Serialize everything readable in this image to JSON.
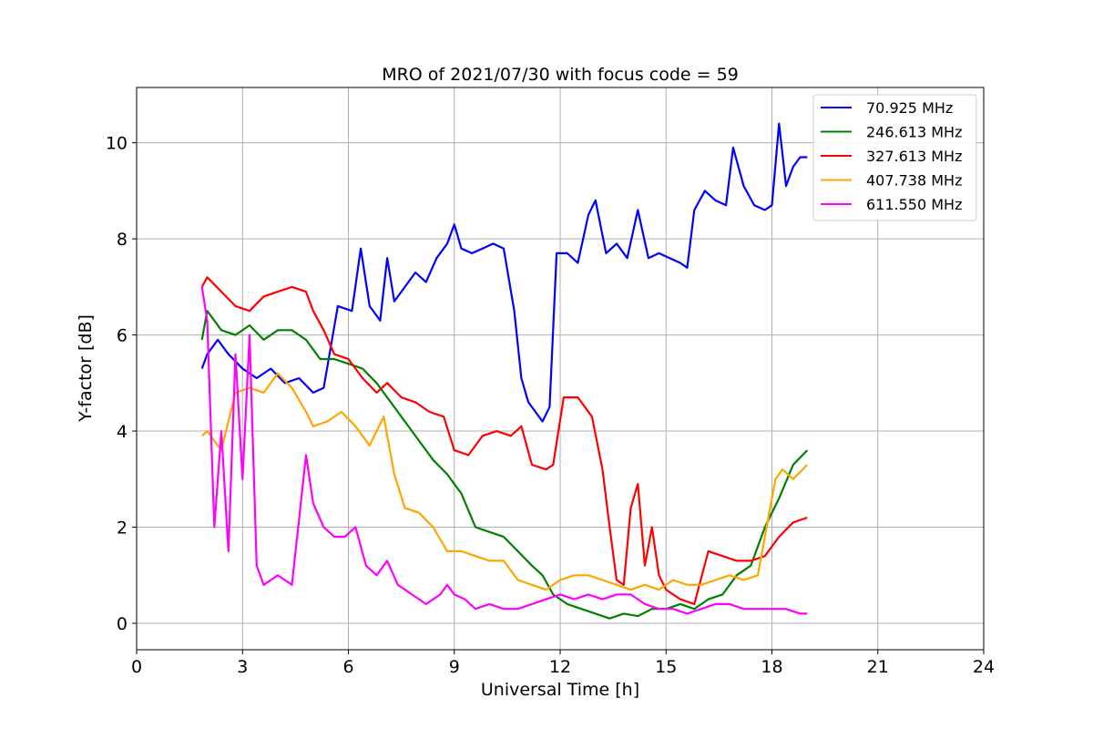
{
  "chart_data": {
    "type": "line",
    "title": "MRO of 2021/07/30 with focus code = 59",
    "xlabel": "Universal Time [h]",
    "ylabel": "Y-factor [dB]",
    "xlim": [
      0,
      24
    ],
    "ylim": [
      -0.55,
      11.15
    ],
    "xticks": [
      0,
      3,
      6,
      9,
      12,
      15,
      18,
      21,
      24
    ],
    "yticks": [
      0,
      2,
      4,
      6,
      8,
      10
    ],
    "grid": true,
    "legend_position": "top-right",
    "series": [
      {
        "name": "  70.925 MHz",
        "color": "#0000ff",
        "x": [
          1.85,
          2.0,
          2.3,
          2.6,
          3.0,
          3.4,
          3.8,
          4.2,
          4.6,
          5.0,
          5.3,
          5.7,
          6.1,
          6.35,
          6.6,
          6.9,
          7.1,
          7.3,
          7.6,
          7.9,
          8.2,
          8.5,
          8.8,
          9.0,
          9.2,
          9.5,
          9.8,
          10.1,
          10.4,
          10.7,
          10.9,
          11.1,
          11.3,
          11.5,
          11.7,
          11.9,
          12.2,
          12.5,
          12.8,
          13.0,
          13.3,
          13.6,
          13.9,
          14.2,
          14.5,
          14.8,
          15.1,
          15.4,
          15.6,
          15.8,
          16.1,
          16.4,
          16.7,
          16.9,
          17.2,
          17.5,
          17.8,
          18.0,
          18.2,
          18.4,
          18.6,
          18.8,
          19.0
        ],
        "values": [
          5.3,
          5.6,
          5.9,
          5.6,
          5.3,
          5.1,
          5.3,
          5.0,
          5.1,
          4.8,
          4.9,
          6.6,
          6.5,
          7.8,
          6.6,
          6.3,
          7.6,
          6.7,
          7.0,
          7.3,
          7.1,
          7.6,
          7.9,
          8.3,
          7.8,
          7.7,
          7.8,
          7.9,
          7.8,
          6.5,
          5.1,
          4.6,
          4.4,
          4.2,
          4.5,
          7.7,
          7.7,
          7.5,
          8.5,
          8.8,
          7.7,
          7.9,
          7.6,
          8.6,
          7.6,
          7.7,
          7.6,
          7.5,
          7.4,
          8.6,
          9.0,
          8.8,
          8.7,
          9.9,
          9.1,
          8.7,
          8.6,
          8.7,
          10.4,
          9.1,
          9.5,
          9.7,
          9.7
        ]
      },
      {
        "name": "246.613 MHz",
        "color": "#008000",
        "x": [
          1.85,
          2.0,
          2.4,
          2.8,
          3.2,
          3.6,
          4.0,
          4.4,
          4.8,
          5.2,
          5.6,
          6.0,
          6.4,
          6.8,
          7.2,
          7.6,
          8.0,
          8.4,
          8.8,
          9.2,
          9.6,
          10.0,
          10.4,
          10.8,
          11.2,
          11.5,
          11.8,
          12.2,
          12.6,
          13.0,
          13.4,
          13.8,
          14.2,
          14.6,
          15.0,
          15.4,
          15.8,
          16.2,
          16.6,
          17.0,
          17.4,
          17.8,
          18.2,
          18.6,
          19.0
        ],
        "values": [
          5.9,
          6.5,
          6.1,
          6.0,
          6.2,
          5.9,
          6.1,
          6.1,
          5.9,
          5.5,
          5.5,
          5.4,
          5.3,
          5.0,
          4.6,
          4.2,
          3.8,
          3.4,
          3.1,
          2.7,
          2.0,
          1.9,
          1.8,
          1.5,
          1.2,
          1.0,
          0.6,
          0.4,
          0.3,
          0.2,
          0.1,
          0.2,
          0.15,
          0.3,
          0.3,
          0.4,
          0.3,
          0.5,
          0.6,
          1.0,
          1.2,
          2.0,
          2.6,
          3.3,
          3.6
        ]
      },
      {
        "name": "327.613 MHz",
        "color": "#ff0000",
        "x": [
          1.85,
          2.0,
          2.4,
          2.8,
          3.2,
          3.6,
          4.0,
          4.4,
          4.8,
          5.0,
          5.3,
          5.6,
          6.0,
          6.4,
          6.8,
          7.1,
          7.5,
          7.9,
          8.3,
          8.7,
          9.0,
          9.4,
          9.8,
          10.2,
          10.6,
          10.9,
          11.2,
          11.6,
          11.8,
          12.1,
          12.5,
          12.9,
          13.2,
          13.4,
          13.6,
          13.8,
          14.0,
          14.2,
          14.4,
          14.6,
          14.8,
          15.0,
          15.4,
          15.8,
          16.2,
          16.6,
          17.0,
          17.4,
          17.8,
          18.2,
          18.6,
          19.0
        ],
        "values": [
          7.0,
          7.2,
          6.9,
          6.6,
          6.5,
          6.8,
          6.9,
          7.0,
          6.9,
          6.5,
          6.1,
          5.6,
          5.5,
          5.1,
          4.8,
          5.0,
          4.7,
          4.6,
          4.4,
          4.3,
          3.6,
          3.5,
          3.9,
          4.0,
          3.9,
          4.1,
          3.3,
          3.2,
          3.3,
          4.7,
          4.7,
          4.3,
          3.2,
          2.0,
          0.9,
          0.8,
          2.4,
          2.9,
          1.2,
          2.0,
          1.0,
          0.7,
          0.5,
          0.4,
          1.5,
          1.4,
          1.3,
          1.3,
          1.4,
          1.8,
          2.1,
          2.2
        ]
      },
      {
        "name": "407.738 MHz",
        "color": "#ffa500",
        "x": [
          1.85,
          2.0,
          2.4,
          2.8,
          3.2,
          3.6,
          4.0,
          4.4,
          4.8,
          5.0,
          5.4,
          5.8,
          6.2,
          6.6,
          7.0,
          7.3,
          7.6,
          8.0,
          8.4,
          8.8,
          9.2,
          9.6,
          10.0,
          10.4,
          10.8,
          11.2,
          11.6,
          12.0,
          12.4,
          12.8,
          13.2,
          13.6,
          14.0,
          14.4,
          14.8,
          15.2,
          15.6,
          16.0,
          16.4,
          16.8,
          17.2,
          17.6,
          17.9,
          18.1,
          18.3,
          18.6,
          19.0
        ],
        "values": [
          3.9,
          4.0,
          3.6,
          4.8,
          4.9,
          4.8,
          5.2,
          4.9,
          4.4,
          4.1,
          4.2,
          4.4,
          4.1,
          3.7,
          4.3,
          3.1,
          2.4,
          2.3,
          2.0,
          1.5,
          1.5,
          1.4,
          1.3,
          1.3,
          0.9,
          0.8,
          0.7,
          0.9,
          1.0,
          1.0,
          0.9,
          0.8,
          0.7,
          0.8,
          0.7,
          0.9,
          0.8,
          0.8,
          0.9,
          1.0,
          0.9,
          1.0,
          2.2,
          3.0,
          3.2,
          3.0,
          3.3
        ]
      },
      {
        "name": "611.550 MHz",
        "color": "#ff00ff",
        "x": [
          1.85,
          2.0,
          2.2,
          2.4,
          2.6,
          2.8,
          3.0,
          3.2,
          3.4,
          3.6,
          3.8,
          4.0,
          4.4,
          4.8,
          5.0,
          5.3,
          5.6,
          5.9,
          6.2,
          6.5,
          6.8,
          7.1,
          7.4,
          7.8,
          8.2,
          8.6,
          8.8,
          9.0,
          9.3,
          9.6,
          10.0,
          10.4,
          10.8,
          11.2,
          11.6,
          12.0,
          12.4,
          12.8,
          13.2,
          13.6,
          14.0,
          14.4,
          14.8,
          15.2,
          15.6,
          16.0,
          16.4,
          16.8,
          17.2,
          17.6,
          18.0,
          18.4,
          18.8,
          19.0
        ],
        "values": [
          7.0,
          6.3,
          2.0,
          4.0,
          1.5,
          5.6,
          3.0,
          6.0,
          1.2,
          0.8,
          0.9,
          1.0,
          0.8,
          3.5,
          2.5,
          2.0,
          1.8,
          1.8,
          2.0,
          1.2,
          1.0,
          1.3,
          0.8,
          0.6,
          0.4,
          0.6,
          0.8,
          0.6,
          0.5,
          0.3,
          0.4,
          0.3,
          0.3,
          0.4,
          0.5,
          0.6,
          0.5,
          0.6,
          0.5,
          0.6,
          0.6,
          0.4,
          0.3,
          0.3,
          0.2,
          0.3,
          0.4,
          0.4,
          0.3,
          0.3,
          0.3,
          0.3,
          0.2,
          0.2
        ]
      }
    ]
  }
}
